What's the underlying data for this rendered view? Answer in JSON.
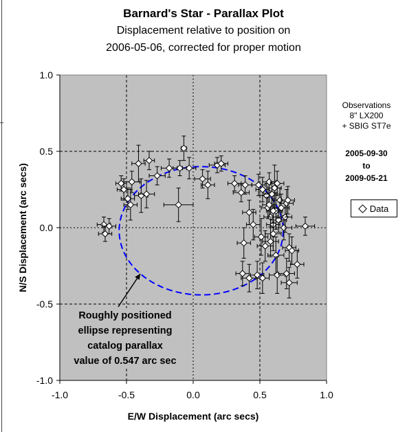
{
  "chart_data": {
    "type": "scatter",
    "title": "Barnard's Star - Parallax Plot",
    "subtitle_lines": [
      "Displacement relative to position on",
      "2006-05-06, corrected for proper motion"
    ],
    "xlabel": "E/W Displacement (arc secs)",
    "ylabel": "N/S Displacement (arc secs)",
    "xlim": [
      -1.0,
      1.0
    ],
    "ylim": [
      -1.0,
      1.0
    ],
    "xticks": [
      -1.0,
      -0.5,
      0.0,
      0.5,
      1.0
    ],
    "yticks": [
      -1.0,
      -0.5,
      0.0,
      0.5,
      1.0
    ],
    "xtick_labels": [
      "-1.0",
      "-0.5",
      "0.0",
      "0.5",
      "1.0"
    ],
    "ytick_labels": [
      "-1.0",
      "-0.5",
      "0.0",
      "0.5",
      "1.0"
    ],
    "grid": "dashed at ±0.5 and solid-dotted at 0",
    "legend": {
      "placement": "right",
      "label": "Data"
    },
    "series": [
      {
        "name": "Data",
        "marker": "diamond",
        "points": [
          {
            "x": -0.67,
            "y": 0.02,
            "ex": 0.05,
            "ey": 0.05
          },
          {
            "x": -0.66,
            "y": -0.04,
            "ex": 0.05,
            "ey": 0.05
          },
          {
            "x": -0.63,
            "y": 0.01,
            "ex": 0.05,
            "ey": 0.05
          },
          {
            "x": -0.54,
            "y": 0.29,
            "ex": 0.04,
            "ey": 0.05
          },
          {
            "x": -0.52,
            "y": 0.25,
            "ex": 0.05,
            "ey": 0.07
          },
          {
            "x": -0.49,
            "y": 0.19,
            "ex": 0.05,
            "ey": 0.07
          },
          {
            "x": -0.47,
            "y": 0.15,
            "ex": 0.05,
            "ey": 0.1
          },
          {
            "x": -0.46,
            "y": 0.3,
            "ex": 0.06,
            "ey": 0.07
          },
          {
            "x": -0.41,
            "y": 0.42,
            "ex": 0.05,
            "ey": 0.12
          },
          {
            "x": -0.39,
            "y": 0.21,
            "ex": 0.05,
            "ey": 0.11
          },
          {
            "x": -0.35,
            "y": 0.22,
            "ex": 0.06,
            "ey": 0.09
          },
          {
            "x": -0.33,
            "y": 0.44,
            "ex": 0.04,
            "ey": 0.06
          },
          {
            "x": -0.27,
            "y": 0.34,
            "ex": 0.06,
            "ey": 0.06
          },
          {
            "x": -0.18,
            "y": 0.39,
            "ex": 0.06,
            "ey": 0.06
          },
          {
            "x": -0.1,
            "y": 0.39,
            "ex": 0.05,
            "ey": 0.05
          },
          {
            "x": -0.11,
            "y": 0.15,
            "ex": 0.11,
            "ey": 0.11
          },
          {
            "x": -0.07,
            "y": 0.52,
            "ex": 0.02,
            "ey": 0.08
          },
          {
            "x": -0.03,
            "y": 0.39,
            "ex": 0.05,
            "ey": 0.07
          },
          {
            "x": 0.07,
            "y": 0.32,
            "ex": 0.06,
            "ey": 0.06
          },
          {
            "x": 0.11,
            "y": 0.28,
            "ex": 0.05,
            "ey": 0.09
          },
          {
            "x": 0.18,
            "y": 0.41,
            "ex": 0.06,
            "ey": 0.05
          },
          {
            "x": 0.21,
            "y": 0.42,
            "ex": 0.05,
            "ey": 0.05
          },
          {
            "x": 0.31,
            "y": 0.29,
            "ex": 0.05,
            "ey": 0.05
          },
          {
            "x": 0.36,
            "y": 0.23,
            "ex": 0.06,
            "ey": 0.06
          },
          {
            "x": 0.39,
            "y": 0.28,
            "ex": 0.05,
            "ey": 0.06
          },
          {
            "x": 0.42,
            "y": 0.1,
            "ex": 0.05,
            "ey": 0.08
          },
          {
            "x": 0.45,
            "y": 0.02,
            "ex": 0.05,
            "ey": 0.1
          },
          {
            "x": 0.49,
            "y": 0.28,
            "ex": 0.05,
            "ey": 0.07
          },
          {
            "x": 0.52,
            "y": 0.25,
            "ex": 0.05,
            "ey": 0.08
          },
          {
            "x": 0.55,
            "y": 0.21,
            "ex": 0.05,
            "ey": 0.08
          },
          {
            "x": 0.56,
            "y": 0.13,
            "ex": 0.05,
            "ey": 0.07
          },
          {
            "x": 0.57,
            "y": 0.3,
            "ex": 0.05,
            "ey": 0.06
          },
          {
            "x": 0.58,
            "y": 0.07,
            "ex": 0.05,
            "ey": 0.07
          },
          {
            "x": 0.59,
            "y": 0.22,
            "ex": 0.06,
            "ey": 0.08
          },
          {
            "x": 0.6,
            "y": 0.02,
            "ex": 0.05,
            "ey": 0.08
          },
          {
            "x": 0.61,
            "y": 0.26,
            "ex": 0.05,
            "ey": 0.15
          },
          {
            "x": 0.62,
            "y": 0.11,
            "ex": 0.05,
            "ey": 0.12
          },
          {
            "x": 0.63,
            "y": 0.29,
            "ex": 0.05,
            "ey": 0.08
          },
          {
            "x": 0.64,
            "y": 0.05,
            "ex": 0.06,
            "ey": 0.08
          },
          {
            "x": 0.65,
            "y": 0.18,
            "ex": 0.06,
            "ey": 0.08
          },
          {
            "x": 0.66,
            "y": 0.13,
            "ex": 0.06,
            "ey": 0.09
          },
          {
            "x": 0.68,
            "y": 0.0,
            "ex": 0.06,
            "ey": 0.08
          },
          {
            "x": 0.69,
            "y": 0.07,
            "ex": 0.05,
            "ey": 0.1
          },
          {
            "x": 0.7,
            "y": 0.16,
            "ex": 0.05,
            "ey": 0.09
          },
          {
            "x": 0.71,
            "y": 0.18,
            "ex": 0.05,
            "ey": 0.09
          },
          {
            "x": 0.72,
            "y": -0.13,
            "ex": 0.05,
            "ey": 0.09
          },
          {
            "x": 0.74,
            "y": -0.15,
            "ex": 0.05,
            "ey": 0.09
          },
          {
            "x": 0.78,
            "y": -0.24,
            "ex": 0.05,
            "ey": 0.09
          },
          {
            "x": 0.84,
            "y": 0.01,
            "ex": 0.07,
            "ey": 0.06
          },
          {
            "x": 0.38,
            "y": -0.1,
            "ex": 0.05,
            "ey": 0.1
          },
          {
            "x": 0.37,
            "y": -0.3,
            "ex": 0.05,
            "ey": 0.08
          },
          {
            "x": 0.42,
            "y": -0.33,
            "ex": 0.06,
            "ey": 0.09
          },
          {
            "x": 0.48,
            "y": -0.31,
            "ex": 0.05,
            "ey": 0.09
          },
          {
            "x": 0.52,
            "y": -0.33,
            "ex": 0.05,
            "ey": 0.1
          },
          {
            "x": 0.51,
            "y": -0.06,
            "ex": 0.05,
            "ey": 0.12
          },
          {
            "x": 0.54,
            "y": -0.12,
            "ex": 0.06,
            "ey": 0.1
          },
          {
            "x": 0.58,
            "y": -0.09,
            "ex": 0.06,
            "ey": 0.1
          },
          {
            "x": 0.6,
            "y": -0.04,
            "ex": 0.06,
            "ey": 0.11
          },
          {
            "x": 0.62,
            "y": -0.18,
            "ex": 0.06,
            "ey": 0.12
          },
          {
            "x": 0.63,
            "y": -0.31,
            "ex": 0.06,
            "ey": 0.12
          },
          {
            "x": 0.7,
            "y": -0.3,
            "ex": 0.06,
            "ey": 0.1
          },
          {
            "x": 0.72,
            "y": -0.36,
            "ex": 0.06,
            "ey": 0.1
          },
          {
            "x": 0.57,
            "y": 0.15,
            "ex": 0.05,
            "ey": 0.08
          },
          {
            "x": 0.6,
            "y": 0.11,
            "ex": 0.05,
            "ey": 0.08
          }
        ]
      }
    ],
    "ellipse": {
      "cx": 0.06,
      "cy": -0.02,
      "rx": 0.615,
      "ry": 0.42,
      "color": "#0000ff",
      "style": "dashed"
    },
    "annotation_lines": [
      "Roughly positioned",
      "ellipse representing",
      "catalog parallax",
      "value of 0.547 arc sec"
    ],
    "colors": {
      "plot_bg": "#c0c0c0",
      "ellipse": "#0000ff",
      "grid": "#000000"
    }
  },
  "side_info": {
    "line1": "Observations",
    "line2": "8\" LX200",
    "line3": "+ SBIG ST7e",
    "date_start": "2005-09-30",
    "date_to": "to",
    "date_end": "2009-05-21"
  }
}
